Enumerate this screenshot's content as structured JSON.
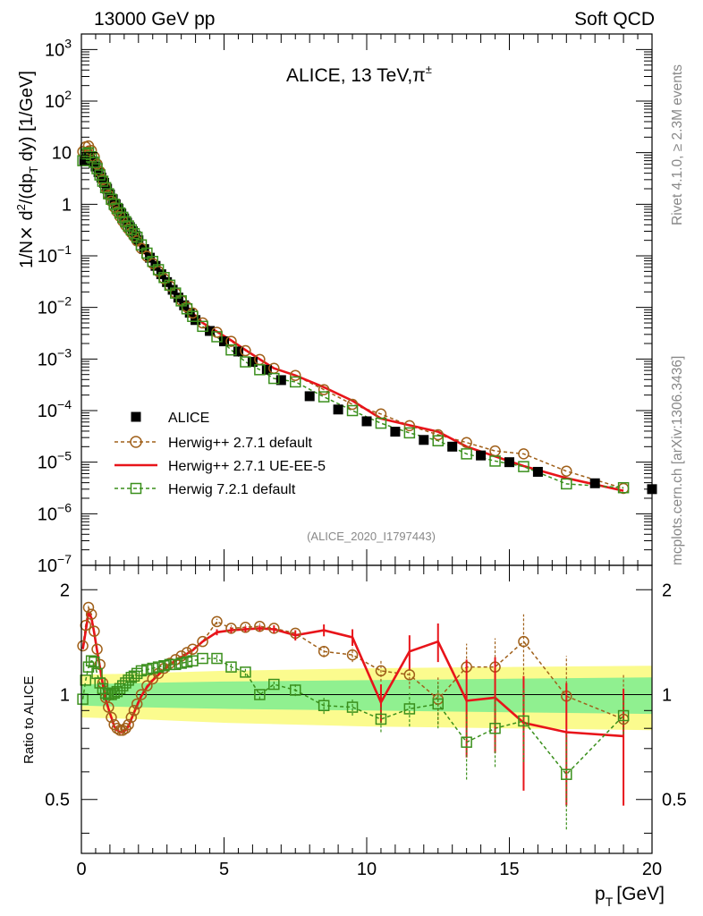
{
  "header": {
    "left": "13000 GeV pp",
    "right": "Soft QCD"
  },
  "side_labels": {
    "rivet": "Rivet 4.1.0, ≥ 2.3M events",
    "mcplots": "mcplots.cern.ch [arXiv:1306.3436]"
  },
  "colors": {
    "data": "#000000",
    "herwigpp_default": "#a0601a",
    "herwigpp_ueee5": "#e8141a",
    "herwig7_default": "#3a8f1c",
    "band_inner": "#90f090",
    "band_outer": "#fbfb8e"
  },
  "chart_data": [
    {
      "type": "scatter",
      "title_main": "ALICE, 13 TeV,",
      "title_particle": "π",
      "title_sup": "±",
      "ylabel": "1/N × d²/(dp_T dy) [1/GeV]",
      "ylabel_parts": {
        "a": "1/N",
        "b": "×",
        "c": " d",
        "d": "2",
        "e": "/(dp",
        "f": "T",
        "g": " dy) [1/GeV]"
      },
      "yscale": "log",
      "ylim": [
        1e-07,
        2000
      ],
      "xlim": [
        0,
        20
      ],
      "ytick_labels": [
        {
          "base": "10",
          "exp": "−7"
        },
        {
          "base": "10",
          "exp": "−6"
        },
        {
          "base": "10",
          "exp": "−5"
        },
        {
          "base": "10",
          "exp": "−4"
        },
        {
          "base": "10",
          "exp": "−3"
        },
        {
          "base": "10",
          "exp": "−2"
        },
        {
          "base": "10",
          "exp": "−1"
        },
        {
          "base": "1",
          "exp": ""
        },
        {
          "base": "10",
          "exp": ""
        },
        {
          "base": "10",
          "exp": "2"
        },
        {
          "base": "10",
          "exp": "3"
        }
      ],
      "watermark": "(ALICE_2020_I1797443)",
      "legend": [
        {
          "label": "ALICE",
          "style": "data"
        },
        {
          "label": "Herwig++ 2.7.1 default",
          "style": "herwigpp_default"
        },
        {
          "label": "Herwig++ 2.7.1 UE-EE-5",
          "style": "herwigpp_ueee5"
        },
        {
          "label": "Herwig 7.2.1 default",
          "style": "herwig7_default"
        }
      ],
      "data_x": [
        0.1,
        0.2,
        0.3,
        0.4,
        0.5,
        0.6,
        0.7,
        0.8,
        0.9,
        1.0,
        1.1,
        1.2,
        1.3,
        1.4,
        1.5,
        1.6,
        1.7,
        1.8,
        1.9,
        2.0,
        2.2,
        2.4,
        2.6,
        2.8,
        3.0,
        3.2,
        3.4,
        3.6,
        3.8,
        4.0,
        4.5,
        5.0,
        5.5,
        6.0,
        6.5,
        7.0,
        8.0,
        9.0,
        10.0,
        11.0,
        12.0,
        13.0,
        14.0,
        15.0,
        16.0,
        18.0,
        20.0
      ],
      "data_y": [
        7.0,
        8.0,
        8.1,
        6.8,
        5.4,
        4.2,
        3.3,
        2.6,
        2.0,
        1.55,
        1.25,
        1.0,
        0.82,
        0.66,
        0.53,
        0.44,
        0.36,
        0.3,
        0.245,
        0.2,
        0.135,
        0.092,
        0.064,
        0.044,
        0.031,
        0.022,
        0.0155,
        0.011,
        0.0079,
        0.0057,
        0.0035,
        0.0022,
        0.0014,
        0.00088,
        0.00062,
        0.00039,
        0.00019,
        0.000105,
        6.2e-05,
        3.9e-05,
        2.7e-05,
        2e-05,
        1.35e-05,
        1e-05,
        6.5e-06,
        3.9e-06,
        3e-06
      ],
      "series": [
        {
          "name": "Herwig++ 2.7.1 default",
          "key": "herwigpp_default",
          "marker": "circle",
          "dash": true,
          "x": [
            0.05,
            0.15,
            0.25,
            0.35,
            0.45,
            0.55,
            0.65,
            0.75,
            0.85,
            0.95,
            1.05,
            1.15,
            1.25,
            1.35,
            1.45,
            1.55,
            1.65,
            1.75,
            1.85,
            1.95,
            2.1,
            2.3,
            2.5,
            2.7,
            2.9,
            3.1,
            3.3,
            3.5,
            3.7,
            3.9,
            4.25,
            4.75,
            5.25,
            5.75,
            6.25,
            6.75,
            7.5,
            8.5,
            9.5,
            10.5,
            11.5,
            12.5,
            13.5,
            14.5,
            15.5,
            17.0,
            19.0
          ],
          "y": [
            10.5,
            13.0,
            13.5,
            11.0,
            8.3,
            6.0,
            4.3,
            3.0,
            2.1,
            1.5,
            1.15,
            0.88,
            0.72,
            0.58,
            0.47,
            0.39,
            0.33,
            0.28,
            0.235,
            0.195,
            0.14,
            0.098,
            0.071,
            0.05,
            0.036,
            0.026,
            0.019,
            0.0137,
            0.0102,
            0.0078,
            0.005,
            0.0033,
            0.0022,
            0.00145,
            0.00098,
            0.00066,
            0.00048,
            0.000255,
            0.000132,
            8.6e-05,
            5.1e-05,
            3.4e-05,
            2.4e-05,
            1.65e-05,
            1.45e-05,
            6.7e-06,
            3.1e-06
          ]
        },
        {
          "name": "Herwig++ 2.7.1 UE-EE-5",
          "key": "herwigpp_ueee5",
          "marker": "none",
          "dash": false,
          "x": [
            0.05,
            0.15,
            0.25,
            0.35,
            0.45,
            0.55,
            0.65,
            0.75,
            0.85,
            0.95,
            1.05,
            1.15,
            1.25,
            1.35,
            1.45,
            1.55,
            1.65,
            1.75,
            1.85,
            1.95,
            2.1,
            2.3,
            2.5,
            2.7,
            2.9,
            3.1,
            3.3,
            3.5,
            3.7,
            3.9,
            4.25,
            4.75,
            5.25,
            5.75,
            6.25,
            6.75,
            7.5,
            8.5,
            9.5,
            10.5,
            11.5,
            12.5,
            13.5,
            14.5,
            15.5,
            17.0,
            19.0
          ],
          "y": [
            9.5,
            12.2,
            13.0,
            10.8,
            8.2,
            6.0,
            4.3,
            3.0,
            2.1,
            1.5,
            1.15,
            0.88,
            0.72,
            0.58,
            0.47,
            0.39,
            0.33,
            0.28,
            0.235,
            0.195,
            0.14,
            0.098,
            0.071,
            0.05,
            0.036,
            0.026,
            0.019,
            0.0137,
            0.0102,
            0.0078,
            0.005,
            0.0034,
            0.0023,
            0.0015,
            0.00099,
            0.00066,
            0.00048,
            0.000285,
            0.000155,
            7e-05,
            5.2e-05,
            3.9e-05,
            2e-05,
            1.3e-05,
            8.4e-06,
            4.9e-06,
            2.8e-06
          ]
        },
        {
          "name": "Herwig 7.2.1 default",
          "key": "herwig7_default",
          "marker": "square",
          "dash": true,
          "x": [
            0.05,
            0.15,
            0.25,
            0.35,
            0.45,
            0.55,
            0.65,
            0.75,
            0.85,
            0.95,
            1.05,
            1.15,
            1.25,
            1.35,
            1.45,
            1.55,
            1.65,
            1.75,
            1.85,
            1.95,
            2.1,
            2.3,
            2.5,
            2.7,
            2.9,
            3.1,
            3.3,
            3.5,
            3.7,
            3.9,
            4.25,
            4.75,
            5.25,
            5.75,
            6.25,
            6.75,
            7.5,
            8.5,
            9.5,
            10.5,
            11.5,
            12.5,
            13.5,
            14.5,
            15.5,
            17.0,
            19.0
          ],
          "y": [
            7.0,
            9.5,
            10.0,
            8.3,
            6.5,
            4.9,
            3.7,
            2.8,
            2.1,
            1.6,
            1.25,
            1.0,
            0.83,
            0.68,
            0.56,
            0.46,
            0.38,
            0.32,
            0.27,
            0.23,
            0.163,
            0.113,
            0.078,
            0.054,
            0.038,
            0.027,
            0.019,
            0.0134,
            0.0094,
            0.0067,
            0.0043,
            0.0027,
            0.0015,
            0.00088,
            0.00062,
            0.00042,
            0.00036,
            0.000185,
            0.0001,
            5.7e-05,
            3.7e-05,
            2.6e-05,
            1.45e-05,
            1.05e-05,
            8.2e-06,
            3.8e-06,
            3.2e-06
          ]
        }
      ]
    },
    {
      "type": "line",
      "ylabel": "Ratio to ALICE",
      "xlabel_main": "p",
      "xlabel_sub": "T",
      "xlabel_unit": "[GeV]",
      "ylim": [
        0.35,
        2.35
      ],
      "xlim": [
        0,
        20
      ],
      "xtick_labels": [
        "0",
        "5",
        "10",
        "15",
        "20"
      ],
      "ytick_labels": [
        "0.5",
        "1",
        "2"
      ],
      "ytick_values": [
        0.5,
        1,
        2
      ],
      "band_inner": [
        [
          0,
          0.93,
          1.07
        ],
        [
          2,
          0.92,
          1.08
        ],
        [
          5,
          0.91,
          1.09
        ],
        [
          10,
          0.9,
          1.1
        ],
        [
          15,
          0.89,
          1.11
        ],
        [
          20,
          0.88,
          1.12
        ]
      ],
      "band_outer": [
        [
          0,
          0.86,
          1.14
        ],
        [
          2,
          0.85,
          1.15
        ],
        [
          5,
          0.83,
          1.17
        ],
        [
          10,
          0.81,
          1.19
        ],
        [
          15,
          0.8,
          1.2
        ],
        [
          20,
          0.79,
          1.21
        ]
      ],
      "series": [
        {
          "name": "Herwig++ 2.7.1 default",
          "key": "herwigpp_default",
          "x": [
            0.05,
            0.15,
            0.25,
            0.35,
            0.45,
            0.55,
            0.65,
            0.75,
            0.85,
            0.95,
            1.05,
            1.15,
            1.25,
            1.35,
            1.45,
            1.55,
            1.65,
            1.75,
            1.85,
            1.95,
            2.1,
            2.3,
            2.5,
            2.7,
            2.9,
            3.1,
            3.3,
            3.5,
            3.7,
            3.9,
            4.25,
            4.75,
            5.25,
            5.75,
            6.25,
            6.75,
            7.5,
            8.5,
            9.5,
            10.5,
            11.5,
            12.5,
            13.5,
            14.5,
            15.5,
            17.0,
            19.0
          ],
          "y": [
            1.38,
            1.58,
            1.78,
            1.7,
            1.52,
            1.35,
            1.22,
            1.08,
            0.98,
            0.92,
            0.86,
            0.82,
            0.8,
            0.79,
            0.79,
            0.8,
            0.82,
            0.86,
            0.9,
            0.94,
            1.0,
            1.06,
            1.11,
            1.15,
            1.19,
            1.23,
            1.26,
            1.29,
            1.32,
            1.35,
            1.42,
            1.62,
            1.55,
            1.56,
            1.57,
            1.55,
            1.5,
            1.33,
            1.3,
            1.17,
            1.14,
            0.97,
            1.2,
            1.2,
            1.42,
            0.99,
            0.85
          ],
          "err": [
            0.02,
            0.02,
            0.02,
            0.02,
            0.02,
            0.02,
            0.02,
            0.02,
            0.02,
            0.02,
            0.02,
            0.02,
            0.02,
            0.02,
            0.02,
            0.02,
            0.02,
            0.02,
            0.02,
            0.02,
            0.02,
            0.02,
            0.02,
            0.02,
            0.02,
            0.02,
            0.02,
            0.02,
            0.02,
            0.02,
            0.02,
            0.03,
            0.03,
            0.03,
            0.03,
            0.03,
            0.04,
            0.05,
            0.06,
            0.08,
            0.1,
            0.15,
            0.2,
            0.25,
            0.28,
            0.3,
            0.3
          ]
        },
        {
          "name": "Herwig++ 2.7.1 UE-EE-5",
          "key": "herwigpp_ueee5",
          "x": [
            0.05,
            0.15,
            0.25,
            0.35,
            0.45,
            0.55,
            0.65,
            0.75,
            0.85,
            0.95,
            1.05,
            1.15,
            1.25,
            1.35,
            1.45,
            1.55,
            1.65,
            1.75,
            1.85,
            1.95,
            2.1,
            2.3,
            2.5,
            2.7,
            2.9,
            3.1,
            3.3,
            3.5,
            3.7,
            3.9,
            4.25,
            4.75,
            5.25,
            5.75,
            6.25,
            6.75,
            7.5,
            8.5,
            9.5,
            10.5,
            11.5,
            12.5,
            13.5,
            14.5,
            15.5,
            17.0,
            19.0
          ],
          "y": [
            1.35,
            1.52,
            1.72,
            1.66,
            1.5,
            1.34,
            1.2,
            1.07,
            0.97,
            0.91,
            0.86,
            0.81,
            0.79,
            0.78,
            0.78,
            0.79,
            0.81,
            0.85,
            0.89,
            0.93,
            0.99,
            1.05,
            1.1,
            1.14,
            1.18,
            1.22,
            1.25,
            1.28,
            1.31,
            1.34,
            1.42,
            1.51,
            1.53,
            1.54,
            1.55,
            1.54,
            1.48,
            1.53,
            1.46,
            0.95,
            1.33,
            1.42,
            0.96,
            0.98,
            0.83,
            0.78,
            0.76
          ],
          "err": [
            0.02,
            0.02,
            0.02,
            0.02,
            0.02,
            0.02,
            0.02,
            0.02,
            0.02,
            0.02,
            0.02,
            0.02,
            0.02,
            0.02,
            0.02,
            0.02,
            0.02,
            0.02,
            0.02,
            0.02,
            0.02,
            0.02,
            0.02,
            0.02,
            0.02,
            0.02,
            0.02,
            0.02,
            0.02,
            0.02,
            0.02,
            0.03,
            0.03,
            0.03,
            0.03,
            0.04,
            0.05,
            0.06,
            0.08,
            0.12,
            0.15,
            0.18,
            0.3,
            0.3,
            0.3,
            0.3,
            0.28
          ]
        },
        {
          "name": "Herwig 7.2.1 default",
          "key": "herwig7_default",
          "x": [
            0.05,
            0.15,
            0.25,
            0.35,
            0.45,
            0.55,
            0.65,
            0.75,
            0.85,
            0.95,
            1.05,
            1.15,
            1.25,
            1.35,
            1.45,
            1.55,
            1.65,
            1.75,
            1.85,
            1.95,
            2.1,
            2.3,
            2.5,
            2.7,
            2.9,
            3.1,
            3.3,
            3.5,
            3.7,
            3.9,
            4.25,
            4.75,
            5.25,
            5.75,
            6.25,
            6.75,
            7.5,
            8.5,
            9.5,
            10.5,
            11.5,
            12.5,
            13.5,
            14.5,
            15.5,
            17.0,
            19.0
          ],
          "y": [
            0.97,
            1.1,
            1.2,
            1.25,
            1.24,
            1.15,
            1.08,
            1.04,
            1.01,
            1.0,
            1.0,
            1.01,
            1.02,
            1.04,
            1.06,
            1.08,
            1.1,
            1.12,
            1.13,
            1.15,
            1.17,
            1.18,
            1.19,
            1.2,
            1.21,
            1.22,
            1.22,
            1.23,
            1.24,
            1.25,
            1.27,
            1.27,
            1.2,
            1.16,
            1.0,
            1.07,
            1.03,
            0.93,
            0.92,
            0.85,
            0.91,
            0.94,
            0.73,
            0.8,
            0.84,
            0.59,
            0.87
          ],
          "err": [
            0.02,
            0.02,
            0.02,
            0.02,
            0.02,
            0.02,
            0.02,
            0.02,
            0.02,
            0.02,
            0.02,
            0.02,
            0.02,
            0.02,
            0.02,
            0.02,
            0.02,
            0.02,
            0.02,
            0.02,
            0.02,
            0.02,
            0.02,
            0.02,
            0.02,
            0.02,
            0.02,
            0.02,
            0.02,
            0.02,
            0.02,
            0.03,
            0.03,
            0.03,
            0.03,
            0.03,
            0.04,
            0.05,
            0.05,
            0.07,
            0.1,
            0.14,
            0.16,
            0.18,
            0.2,
            0.18,
            0.1
          ]
        }
      ]
    }
  ]
}
